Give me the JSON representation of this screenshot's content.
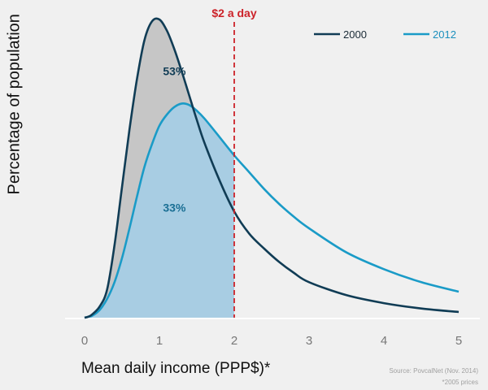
{
  "chart_data": {
    "type": "line",
    "title": "",
    "xlabel": "Mean daily income (PPP$)*",
    "ylabel": "Percentage of population",
    "xlim": [
      0,
      5
    ],
    "x_ticks": [
      "0",
      "1",
      "2",
      "3",
      "4",
      "5"
    ],
    "grid": false,
    "legend_position": "top-right",
    "series": [
      {
        "name": "2000",
        "color": "#103c55",
        "x": [
          0,
          0.05,
          0.1,
          0.2,
          0.3,
          0.4,
          0.5,
          0.6,
          0.7,
          0.8,
          0.9,
          1.0,
          1.1,
          1.2,
          1.3,
          1.4,
          1.5,
          1.6,
          1.8,
          2.0,
          2.2,
          2.4,
          2.6,
          2.8,
          3.0,
          3.5,
          4.0,
          4.5,
          5.0
        ],
        "y": [
          0,
          0.3,
          1.0,
          3.5,
          8.8,
          22.9,
          41.2,
          59.4,
          75.3,
          87.6,
          93.5,
          94.1,
          90.6,
          84.7,
          77.6,
          70.0,
          62.4,
          55.3,
          43.5,
          33.5,
          26.5,
          21.8,
          17.6,
          14.1,
          11.2,
          7.1,
          4.6,
          2.9,
          1.8
        ]
      },
      {
        "name": "2012",
        "color": "#1a9bc7",
        "x": [
          0,
          0.05,
          0.1,
          0.2,
          0.3,
          0.4,
          0.5,
          0.6,
          0.7,
          0.8,
          0.9,
          1.0,
          1.1,
          1.2,
          1.3,
          1.4,
          1.5,
          1.6,
          1.8,
          2.0,
          2.2,
          2.4,
          2.6,
          2.8,
          3.0,
          3.5,
          4.0,
          4.5,
          5.0
        ],
        "y": [
          0,
          0.3,
          0.6,
          2.4,
          5.9,
          11.2,
          18.8,
          28.2,
          38.2,
          47.6,
          54.7,
          60.6,
          64.1,
          66.5,
          67.6,
          67.1,
          65.3,
          62.9,
          57.1,
          51.2,
          45.9,
          40.6,
          35.9,
          31.8,
          28.2,
          20.6,
          15.3,
          11.2,
          8.2
        ]
      }
    ],
    "reference_line": {
      "x": 2,
      "label": "$2 a day",
      "color": "#cc2229"
    },
    "area_labels": [
      {
        "text": "53%",
        "x": 1.2,
        "y": 76.6,
        "color": "#103c55"
      },
      {
        "text": "33%",
        "x": 1.2,
        "y": 33.5,
        "color": "#1a6f94"
      }
    ],
    "fill_colors": {
      "area_2000": "#c6c6c6",
      "area_2012": "#a8cde3"
    }
  },
  "notes": {
    "source": "Source: PovcalNet (Nov. 2014)",
    "footnote": "*2005 prices"
  }
}
